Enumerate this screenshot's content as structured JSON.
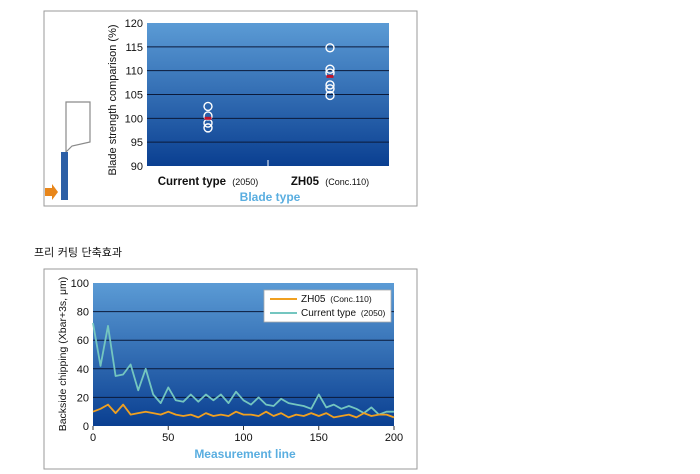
{
  "section_heading": "프리 커팅 단축효과",
  "colors": {
    "plot_top": "#5b9bd5",
    "plot_bottom": "#0a3f91",
    "marker_stroke": "#ffffff",
    "mean_marker": "#c0142b",
    "zh05_line": "#f0a020",
    "current_line": "#74c6c0",
    "axis_title": "#5aaee0",
    "diagram_bar": "#2c5fa6",
    "diagram_arrow": "#e8861a"
  },
  "chart_data": [
    {
      "type": "scatter",
      "ylabel": "Blade strength comparison (%)",
      "xlabel": "Blade type",
      "ylim": [
        90,
        120
      ],
      "yticks": [
        90,
        95,
        100,
        105,
        110,
        115,
        120
      ],
      "grid": true,
      "categories": [
        {
          "label": "Current type",
          "note": "(2050)"
        },
        {
          "label": "ZH05",
          "note": "(Conc.110)"
        }
      ],
      "series": [
        {
          "category": "Current type",
          "values": [
            102.5,
            100.5,
            99,
            98
          ],
          "mean": 100
        }
      ],
      "series_b": {
        "category": "ZH05",
        "values": [
          114.8,
          110.3,
          109.5,
          107,
          106.2,
          104.8
        ],
        "mean": 108.8
      }
    },
    {
      "type": "line",
      "ylabel": "Backside chipping (Xbar+3s, μm)",
      "xlabel": "Measurement line",
      "xlim": [
        0,
        200
      ],
      "ylim": [
        0,
        100
      ],
      "xticks": [
        0,
        50,
        100,
        150,
        200
      ],
      "yticks": [
        0,
        20,
        40,
        60,
        80,
        100
      ],
      "grid": true,
      "legend": "top-right",
      "x": [
        0,
        5,
        10,
        15,
        20,
        25,
        30,
        35,
        40,
        45,
        50,
        55,
        60,
        65,
        70,
        75,
        80,
        85,
        90,
        95,
        100,
        105,
        110,
        115,
        120,
        125,
        130,
        135,
        140,
        145,
        150,
        155,
        160,
        165,
        170,
        175,
        180,
        185,
        190,
        195,
        200
      ],
      "series": [
        {
          "name": "ZH05",
          "note": "(Conc.110)",
          "values": [
            10,
            12,
            15,
            9,
            15,
            8,
            9,
            10,
            9,
            8,
            10,
            8,
            7,
            8,
            6,
            9,
            7,
            8,
            7,
            10,
            8,
            8,
            7,
            10,
            7,
            9,
            6,
            8,
            7,
            9,
            7,
            9,
            6,
            7,
            8,
            6,
            9,
            7,
            8,
            8,
            6
          ]
        },
        {
          "name": "Current type",
          "note": "(2050)",
          "values": [
            72,
            42,
            70,
            35,
            36,
            43,
            25,
            40,
            22,
            16,
            27,
            18,
            17,
            22,
            17,
            22,
            18,
            22,
            16,
            24,
            18,
            15,
            20,
            15,
            14,
            19,
            16,
            15,
            14,
            12,
            22,
            13,
            15,
            12,
            14,
            12,
            9,
            13,
            8,
            10,
            10
          ]
        }
      ]
    }
  ]
}
